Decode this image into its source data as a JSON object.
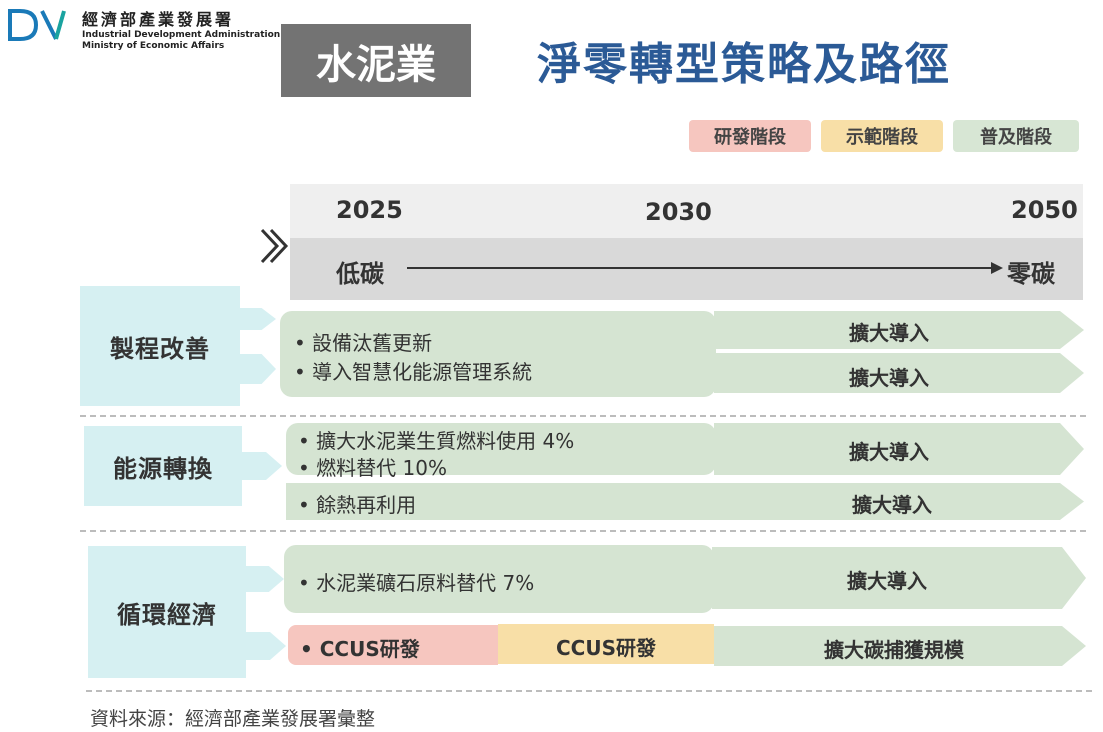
{
  "header": {
    "org_name_cn": "經濟部產業發展署",
    "org_name_en_1": "Industrial Development Administration",
    "org_name_en_2": "Ministry of Economic Affairs",
    "industry": "水泥業",
    "title": "淨零轉型策略及路徑"
  },
  "legend": [
    "研發階段",
    "示範階段",
    "普及階段"
  ],
  "timeline": {
    "years": [
      "2025",
      "2030",
      "2050"
    ],
    "start_label": "低碳",
    "end_label": "零碳"
  },
  "categories": [
    {
      "name": "製程改善",
      "items": [
        "• 設備汰舊更新",
        "• 導入智慧化能源管理系統"
      ],
      "arrows": [
        "擴大導入",
        "擴大導入"
      ]
    },
    {
      "name": "能源轉換",
      "items": [
        "• 擴大水泥業生質燃料使用 4%",
        "• 燃料替代 10%",
        "• 餘熱再利用"
      ],
      "arrows": [
        "擴大導入",
        "擴大導入"
      ]
    },
    {
      "name": "循環經濟",
      "items": [
        "• 水泥業礦石原料替代 7%",
        "• CCUS研發",
        "CCUS研發"
      ],
      "arrows": [
        "擴大導入",
        "擴大碳捕獲規模"
      ]
    }
  ],
  "source": "資料來源：經濟部產業發展署彙整",
  "colors": {
    "title": "#2b5a96",
    "badge": "#737373",
    "category": "#d6f0f2",
    "popularization": "#d5e4d2",
    "research": "#f6c6bf",
    "demonstration": "#f8dfa7"
  }
}
